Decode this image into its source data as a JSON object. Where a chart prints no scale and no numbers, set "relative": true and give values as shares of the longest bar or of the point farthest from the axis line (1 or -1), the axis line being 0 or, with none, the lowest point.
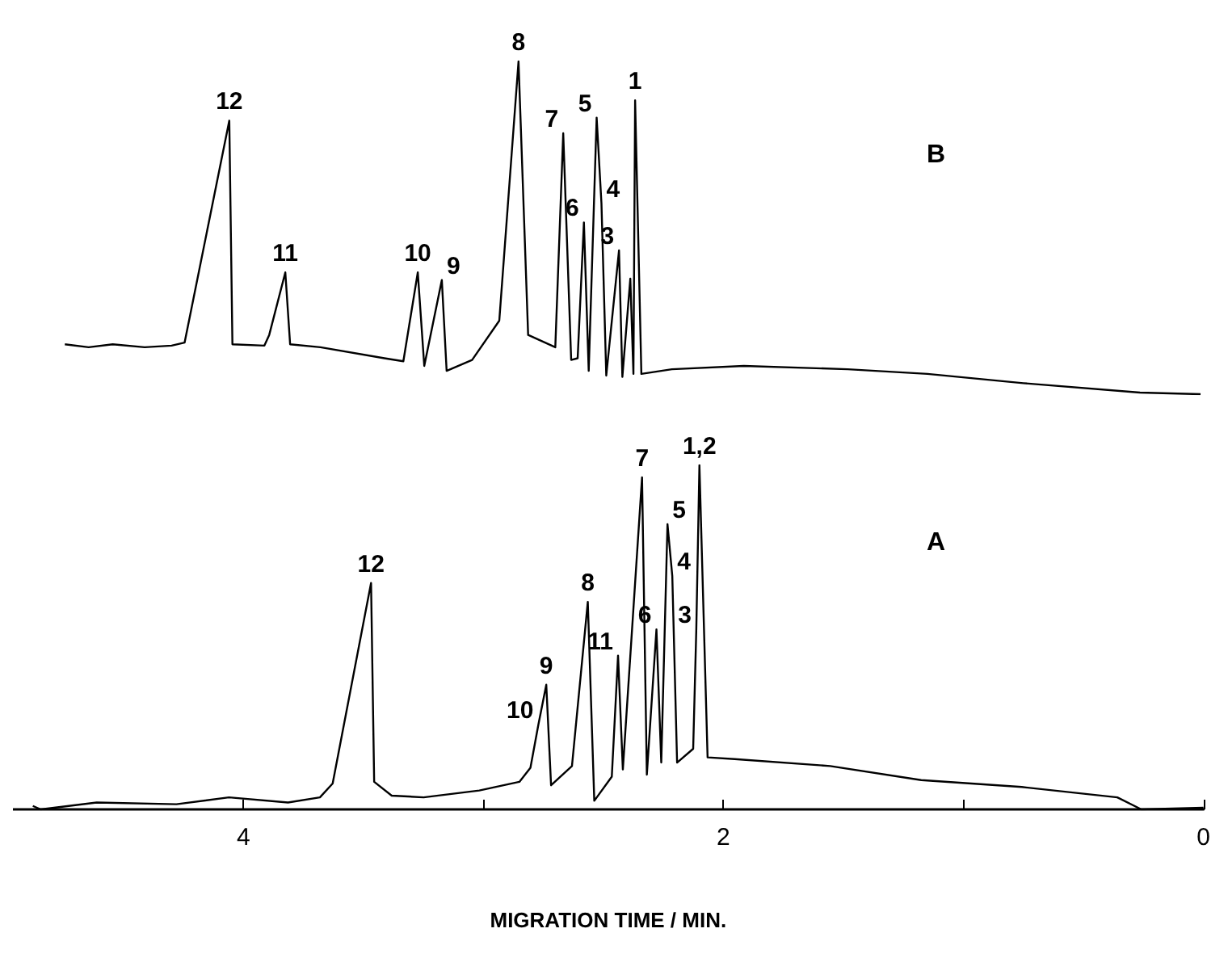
{
  "chart_data": [
    {
      "type": "line",
      "relative": true,
      "tick_labels": false,
      "marker": "none",
      "xlim": [
        4.96,
        0
      ],
      "x": [
        4.744,
        4.645,
        4.545,
        4.412,
        4.3,
        4.246,
        4.06,
        4.047,
        3.914,
        3.894,
        3.827,
        3.807,
        3.681,
        3.415,
        3.336,
        3.276,
        3.249,
        3.176,
        3.156,
        3.05,
        2.937,
        2.857,
        2.817,
        2.704,
        2.671,
        2.638,
        2.611,
        2.585,
        2.565,
        2.532,
        2.512,
        2.492,
        2.439,
        2.425,
        2.392,
        2.379,
        2.372,
        2.346,
        2.219,
        1.92,
        1.488,
        1.156,
        0.757,
        0.272,
        0.02
      ],
      "series": [
        {
          "name": "B",
          "color": "#000000",
          "values": [
            0.15,
            0.141,
            0.15,
            0.141,
            0.146,
            0.155,
            0.822,
            0.15,
            0.146,
            0.178,
            0.366,
            0.15,
            0.141,
            0.108,
            0.099,
            0.366,
            0.085,
            0.343,
            0.07,
            0.103,
            0.221,
            1,
            0.178,
            0.141,
            0.784,
            0.103,
            0.108,
            0.516,
            0.07,
            0.831,
            0.573,
            0.056,
            0.432,
            0.052,
            0.347,
            0.061,
            0.883,
            0.061,
            0.075,
            0.085,
            0.075,
            0.061,
            0.033,
            0.005,
            0
          ]
        }
      ],
      "annotations": [
        {
          "text": "12",
          "x": 4.06,
          "y": 0.822
        },
        {
          "text": "11",
          "x": 3.827,
          "y": 0.366
        },
        {
          "text": "10",
          "x": 3.276,
          "y": 0.366
        },
        {
          "text": "9",
          "x": 3.176,
          "y": 0.343
        },
        {
          "text": "8",
          "x": 2.857,
          "y": 1
        },
        {
          "text": "7",
          "x": 2.671,
          "y": 0.784
        },
        {
          "text": "6",
          "x": 2.585,
          "y": 0.516
        },
        {
          "text": "5",
          "x": 2.532,
          "y": 0.831
        },
        {
          "text": "4",
          "x": 2.512,
          "y": 0.573
        },
        {
          "text": "3",
          "x": 2.439,
          "y": 0.432
        },
        {
          "text": "1",
          "x": 2.372,
          "y": 0.883
        }
      ]
    },
    {
      "type": "line",
      "relative": true,
      "tick_labels": "x",
      "marker": "none",
      "xlabel": "MIGRATION TIME / MIN.",
      "xlim": [
        4.96,
        0
      ],
      "xticks": [
        4,
        {
          "value": 3,
          "label": null
        },
        2,
        {
          "value": 1,
          "label": null
        },
        0
      ],
      "x": [
        4.877,
        4.844,
        4.611,
        4.279,
        4.06,
        3.814,
        3.681,
        3.628,
        3.468,
        3.455,
        3.382,
        3.249,
        3.017,
        2.85,
        2.804,
        2.771,
        2.738,
        2.718,
        2.631,
        2.565,
        2.538,
        2.465,
        2.439,
        2.419,
        2.339,
        2.319,
        2.279,
        2.259,
        2.233,
        2.213,
        2.193,
        2.126,
        2.113,
        2.1,
        2.066,
        1.953,
        1.555,
        1.176,
        0.757,
        0.359,
        0.259,
        0
      ],
      "series": [
        {
          "name": "A",
          "color": "#000000",
          "values": [
            0.01,
            0,
            0.02,
            0.015,
            0.035,
            0.02,
            0.035,
            0.075,
            0.658,
            0.08,
            0.04,
            0.035,
            0.055,
            0.08,
            0.121,
            0.246,
            0.362,
            0.07,
            0.126,
            0.603,
            0.025,
            0.095,
            0.447,
            0.116,
            0.965,
            0.101,
            0.523,
            0.136,
            0.829,
            0.678,
            0.136,
            0.176,
            0.523,
            1,
            0.151,
            0.146,
            0.126,
            0.085,
            0.065,
            0.035,
            0,
            0.005
          ]
        }
      ],
      "annotations": [
        {
          "text": "12",
          "x": 3.468,
          "y": 0.658
        },
        {
          "text": "10",
          "x": 2.771,
          "y": 0.246
        },
        {
          "text": "9",
          "x": 2.738,
          "y": 0.362
        },
        {
          "text": "8",
          "x": 2.565,
          "y": 0.603
        },
        {
          "text": "11",
          "x": 2.439,
          "y": 0.447
        },
        {
          "text": "7",
          "x": 2.339,
          "y": 0.965
        },
        {
          "text": "6",
          "x": 2.279,
          "y": 0.523
        },
        {
          "text": "5",
          "x": 2.233,
          "y": 0.829
        },
        {
          "text": "4",
          "x": 2.213,
          "y": 0.678
        },
        {
          "text": "3",
          "x": 2.113,
          "y": 0.523
        },
        {
          "text": "1,2",
          "x": 2.1,
          "y": 1
        }
      ]
    }
  ]
}
